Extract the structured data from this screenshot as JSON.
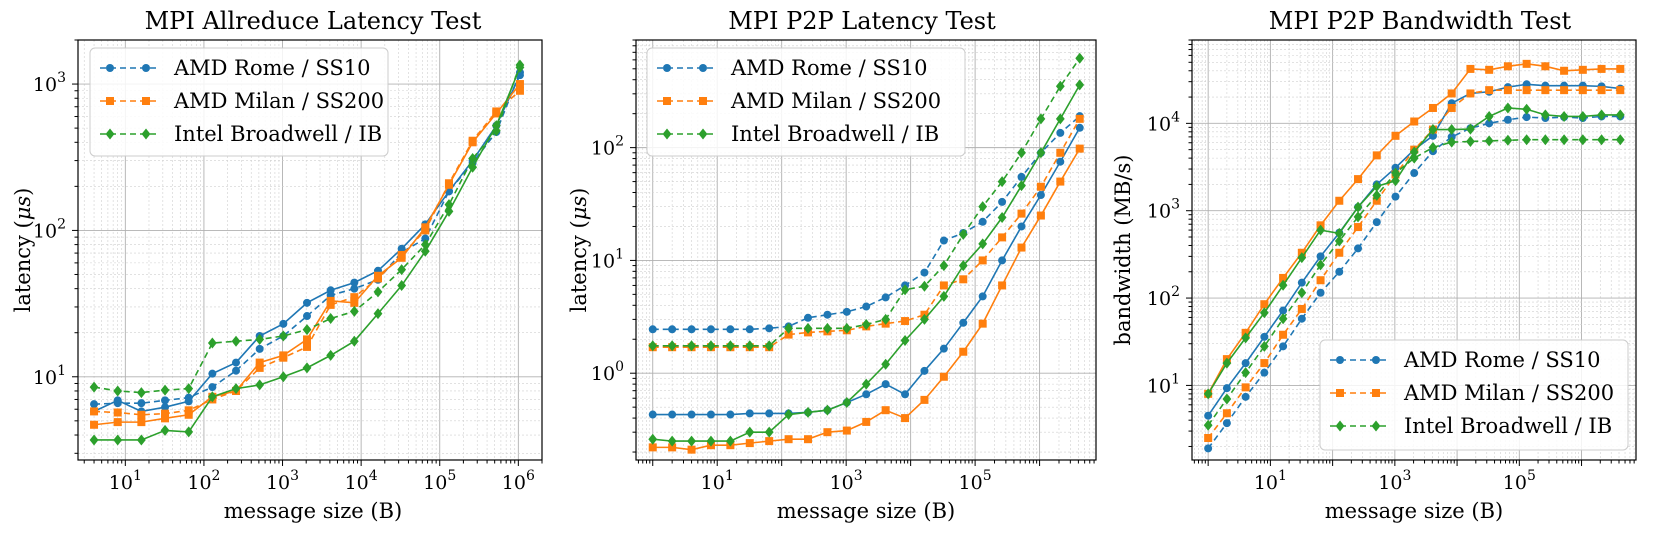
{
  "chart_data": [
    {
      "type": "line",
      "title": "MPI Allreduce Latency Test",
      "xlabel": "message size (B)",
      "ylabel_main": "latency (",
      "ylabel_sym": "μs",
      "ylabel_end": ")",
      "xscale": "log",
      "yscale": "log",
      "xlim": [
        2.5,
        2000000
      ],
      "ylim": [
        2.7,
        2000
      ],
      "xticks": [
        {
          "exp": 1,
          "value": 10
        },
        {
          "exp": 2,
          "value": 100
        },
        {
          "exp": 3,
          "value": 1000
        },
        {
          "exp": 4,
          "value": 10000
        },
        {
          "exp": 5,
          "value": 100000
        },
        {
          "exp": 6,
          "value": 1000000
        }
      ],
      "yticks": [
        {
          "mant": "10",
          "exp": "1",
          "value": 10
        },
        {
          "mant": "10",
          "exp": "2",
          "value": 100
        },
        {
          "mant": "10",
          "exp": "3",
          "value": 1000
        }
      ],
      "legend": {
        "position": "top-left"
      },
      "x": [
        4,
        8,
        16,
        32,
        64,
        128,
        256,
        512,
        1024,
        2048,
        4096,
        8192,
        16384,
        32768,
        65536,
        131072,
        262144,
        524288,
        1048576
      ],
      "series": [
        {
          "name": "AMD Rome / SS10",
          "color": "#1f77b4",
          "marker": "circle",
          "style": "dashed",
          "values": [
            6.5,
            6.6,
            6.6,
            6.9,
            7.2,
            8.5,
            11,
            15.5,
            19,
            26,
            36,
            40,
            46,
            71,
            88,
            185,
            290,
            470,
            1200
          ]
        },
        {
          "name": "AMD Rome / SS10",
          "color": "#1f77b4",
          "marker": "circle",
          "style": "solid",
          "values": [
            5.8,
            6.9,
            5.8,
            6.2,
            6.8,
            10.5,
            12.5,
            19,
            23,
            32,
            39,
            44,
            53,
            75,
            110,
            185,
            300,
            520,
            1150
          ]
        },
        {
          "name": "AMD Milan / SS200",
          "color": "#ff7f0e",
          "marker": "square",
          "style": "dashed",
          "values": [
            5.8,
            5.7,
            5.5,
            5.6,
            5.9,
            7.0,
            8.0,
            11.5,
            13.5,
            16,
            31,
            35,
            47,
            68,
            100,
            210,
            410,
            650,
            900
          ]
        },
        {
          "name": "AMD Milan / SS200",
          "color": "#ff7f0e",
          "marker": "square",
          "style": "solid",
          "values": [
            4.7,
            4.9,
            4.9,
            5.2,
            5.5,
            7.3,
            8.0,
            12.5,
            14,
            18,
            33,
            32,
            49,
            65,
            105,
            205,
            400,
            630,
            1000
          ]
        },
        {
          "name": "Intel Broadwell / IB",
          "color": "#2ca02c",
          "marker": "diamond",
          "style": "dashed",
          "values": [
            8.5,
            8.0,
            7.8,
            8.1,
            8.3,
            17,
            17.5,
            18,
            19,
            21,
            25,
            28,
            38,
            54,
            80,
            150,
            310,
            480,
            1350
          ]
        },
        {
          "name": "Intel Broadwell / IB",
          "color": "#2ca02c",
          "marker": "diamond",
          "style": "solid",
          "values": [
            3.7,
            3.7,
            3.7,
            4.3,
            4.2,
            7.3,
            8.3,
            8.8,
            10,
            11.5,
            14,
            17.5,
            27,
            42,
            72,
            135,
            270,
            520,
            1300
          ]
        }
      ]
    },
    {
      "type": "line",
      "title": "MPI P2P Latency Test",
      "xlabel": "message size (B)",
      "ylabel_main": "latency (",
      "ylabel_sym": "μs",
      "ylabel_end": ")",
      "xscale": "log",
      "yscale": "log",
      "xlim": [
        0.55,
        7500000
      ],
      "ylim": [
        0.17,
        900
      ],
      "xticks": [
        {
          "exp": 1,
          "value": 10
        },
        {
          "exp": 3,
          "value": 1000
        },
        {
          "exp": 5,
          "value": 100000
        }
      ],
      "yticks": [
        {
          "mant": "10",
          "exp": "0",
          "value": 1
        },
        {
          "mant": "10",
          "exp": "1",
          "value": 10
        },
        {
          "mant": "10",
          "exp": "2",
          "value": 100
        }
      ],
      "legend": {
        "position": "top-left"
      },
      "x": [
        1,
        2,
        4,
        8,
        16,
        32,
        64,
        128,
        256,
        512,
        1024,
        2048,
        4096,
        8192,
        16384,
        32768,
        65536,
        131072,
        262144,
        524288,
        1048576,
        2097152,
        4194304
      ],
      "series": [
        {
          "name": "AMD Rome / SS10",
          "color": "#1f77b4",
          "marker": "circle",
          "style": "dashed",
          "values": [
            2.45,
            2.45,
            2.45,
            2.45,
            2.45,
            2.45,
            2.5,
            2.6,
            3.1,
            3.3,
            3.5,
            3.9,
            4.7,
            6.0,
            7.8,
            15,
            17.5,
            22,
            33,
            55,
            90,
            135,
            190
          ]
        },
        {
          "name": "AMD Rome / SS10",
          "color": "#1f77b4",
          "marker": "circle",
          "style": "solid",
          "values": [
            0.43,
            0.43,
            0.43,
            0.43,
            0.43,
            0.44,
            0.44,
            0.44,
            0.45,
            0.47,
            0.55,
            0.65,
            0.8,
            0.65,
            1.05,
            1.65,
            2.8,
            4.8,
            10,
            20,
            38,
            75,
            150
          ]
        },
        {
          "name": "AMD Milan / SS200",
          "color": "#ff7f0e",
          "marker": "square",
          "style": "dashed",
          "values": [
            1.7,
            1.7,
            1.7,
            1.7,
            1.7,
            1.7,
            1.7,
            2.2,
            2.3,
            2.35,
            2.4,
            2.6,
            2.75,
            2.9,
            3.3,
            6.0,
            6.8,
            10,
            16,
            26,
            45,
            90,
            180
          ]
        },
        {
          "name": "AMD Milan / SS200",
          "color": "#ff7f0e",
          "marker": "square",
          "style": "solid",
          "values": [
            0.22,
            0.22,
            0.21,
            0.23,
            0.23,
            0.24,
            0.25,
            0.26,
            0.26,
            0.3,
            0.31,
            0.37,
            0.47,
            0.4,
            0.58,
            0.93,
            1.55,
            2.75,
            6,
            13,
            25,
            50,
            98
          ]
        },
        {
          "name": "Intel Broadwell / IB",
          "color": "#2ca02c",
          "marker": "diamond",
          "style": "dashed",
          "values": [
            1.75,
            1.75,
            1.75,
            1.75,
            1.75,
            1.75,
            1.75,
            2.5,
            2.5,
            2.5,
            2.5,
            2.7,
            3.0,
            5.5,
            5.9,
            9.0,
            17,
            30,
            50,
            90,
            180,
            350,
            620
          ]
        },
        {
          "name": "Intel Broadwell / IB",
          "color": "#2ca02c",
          "marker": "diamond",
          "style": "solid",
          "values": [
            0.26,
            0.25,
            0.25,
            0.25,
            0.25,
            0.3,
            0.3,
            0.43,
            0.45,
            0.47,
            0.55,
            0.8,
            1.2,
            1.95,
            3.0,
            4.8,
            9.0,
            14,
            24,
            46,
            90,
            180,
            360
          ]
        }
      ]
    },
    {
      "type": "line",
      "title": "MPI P2P Bandwidth Test",
      "xlabel": "message size (B)",
      "ylabel_main": "bandwidth (MB/s)",
      "ylabel_sym": "",
      "ylabel_end": "",
      "xscale": "log",
      "yscale": "log",
      "xlim": [
        0.55,
        7500000
      ],
      "ylim": [
        1.4,
        90000
      ],
      "xticks": [
        {
          "exp": 1,
          "value": 10
        },
        {
          "exp": 3,
          "value": 1000
        },
        {
          "exp": 5,
          "value": 100000
        }
      ],
      "yticks": [
        {
          "mant": "10",
          "exp": "1",
          "value": 10
        },
        {
          "mant": "10",
          "exp": "2",
          "value": 100
        },
        {
          "mant": "10",
          "exp": "3",
          "value": 1000
        },
        {
          "mant": "10",
          "exp": "4",
          "value": 10000
        }
      ],
      "legend": {
        "position": "bottom-right"
      },
      "x": [
        1,
        2,
        4,
        8,
        16,
        32,
        64,
        128,
        256,
        512,
        1024,
        2048,
        4096,
        8192,
        16384,
        32768,
        65536,
        131072,
        262144,
        524288,
        1048576,
        2097152,
        4194304
      ],
      "series": [
        {
          "name": "AMD Rome / SS10",
          "color": "#1f77b4",
          "marker": "circle",
          "style": "dashed",
          "values": [
            1.9,
            3.7,
            7.4,
            14,
            28,
            58,
            115,
            200,
            370,
            740,
            1450,
            2700,
            4800,
            7000,
            8800,
            10000,
            11000,
            11800,
            11500,
            11800,
            11500,
            12000,
            12000
          ]
        },
        {
          "name": "AMD Rome / SS10",
          "color": "#1f77b4",
          "marker": "circle",
          "style": "solid",
          "values": [
            4.5,
            9.3,
            18,
            36,
            72,
            150,
            300,
            560,
            1100,
            2000,
            3100,
            5000,
            7200,
            17000,
            22000,
            23000,
            26000,
            28000,
            27000,
            27000,
            27000,
            26500,
            25000
          ]
        },
        {
          "name": "AMD Milan / SS200",
          "color": "#ff7f0e",
          "marker": "square",
          "style": "dashed",
          "values": [
            2.5,
            4.8,
            9.5,
            18,
            38,
            75,
            160,
            330,
            650,
            1300,
            2600,
            5000,
            8500,
            15000,
            22000,
            24000,
            24000,
            24000,
            24000,
            24000,
            24000,
            24000,
            24000
          ]
        },
        {
          "name": "AMD Milan / SS200",
          "color": "#ff7f0e",
          "marker": "square",
          "style": "solid",
          "values": [
            8.0,
            20,
            40,
            85,
            170,
            330,
            680,
            1300,
            2300,
            4300,
            7200,
            10500,
            15000,
            22000,
            42000,
            41000,
            45000,
            48000,
            45000,
            40000,
            41000,
            42000,
            42000
          ]
        },
        {
          "name": "Intel Broadwell / IB",
          "color": "#2ca02c",
          "marker": "diamond",
          "style": "dashed",
          "values": [
            3.5,
            7.0,
            14,
            28,
            58,
            115,
            240,
            450,
            850,
            1500,
            2700,
            4000,
            5300,
            6100,
            6200,
            6300,
            6400,
            6500,
            6500,
            6500,
            6500,
            6500,
            6500
          ]
        },
        {
          "name": "Intel Broadwell / IB",
          "color": "#2ca02c",
          "marker": "diamond",
          "style": "solid",
          "values": [
            8.0,
            18,
            35,
            68,
            140,
            290,
            600,
            550,
            1100,
            1900,
            2200,
            4700,
            8500,
            8500,
            8600,
            12000,
            15000,
            14500,
            12500,
            12000,
            12000,
            12500,
            12500
          ]
        }
      ]
    }
  ]
}
